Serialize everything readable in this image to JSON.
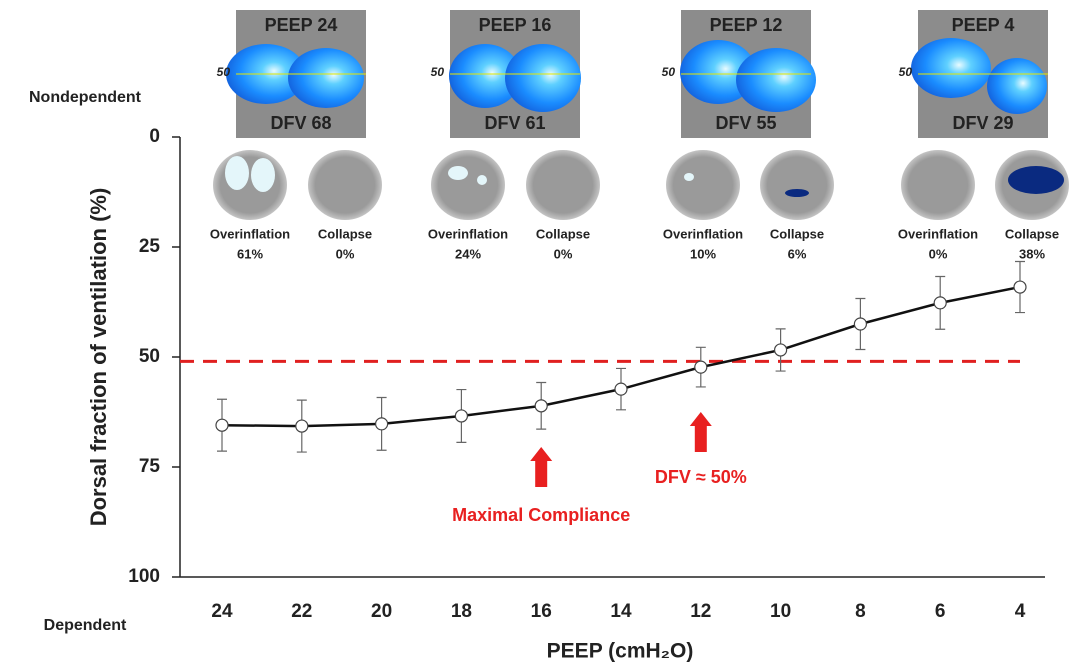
{
  "chart_data": {
    "type": "line",
    "y_label": "Dorsal fraction of ventilation (%)",
    "x_label": "PEEP (cmH₂O)",
    "top_label": "Nondependent",
    "bottom_label": "Dependent",
    "categories": [
      "24",
      "22",
      "20",
      "18",
      "16",
      "14",
      "12",
      "10",
      "8",
      "6",
      "4"
    ],
    "series": [
      {
        "color": "#111111",
        "values": [
          65.5,
          65.7,
          65.2,
          63.4,
          61.1,
          57.3,
          52.3,
          48.4,
          42.5,
          37.7,
          34.1
        ],
        "errors": [
          5.9,
          5.9,
          6,
          6,
          5.3,
          4.7,
          4.5,
          4.8,
          5.8,
          6,
          5.8
        ]
      }
    ],
    "ylim": [
      0,
      100
    ],
    "yticks": [
      0,
      25,
      50,
      75,
      100
    ],
    "y_inverted": true,
    "reference_line": {
      "value": 51,
      "color": "#e02020"
    },
    "annotations": [
      {
        "text": "Maximal Compliance",
        "category": 4,
        "color": "#e82020"
      },
      {
        "text": "DFV ≈ 50%",
        "category": 6,
        "color": "#e82020"
      }
    ],
    "inset_line_label": "50",
    "overinflation_label": "Overinflation",
    "collapse_label": "Collapse",
    "insets": [
      {
        "peep": "PEEP 24",
        "dfv": "DFV 68",
        "overinflation": "61%",
        "collapse": "0%"
      },
      {
        "peep": "PEEP 16",
        "dfv": "DFV 61",
        "overinflation": "24%",
        "collapse": "0%"
      },
      {
        "peep": "PEEP 12",
        "dfv": "DFV 55",
        "overinflation": "10%",
        "collapse": "6%"
      },
      {
        "peep": "PEEP 4",
        "dfv": "DFV 29",
        "overinflation": "0%",
        "collapse": "38%"
      }
    ]
  }
}
